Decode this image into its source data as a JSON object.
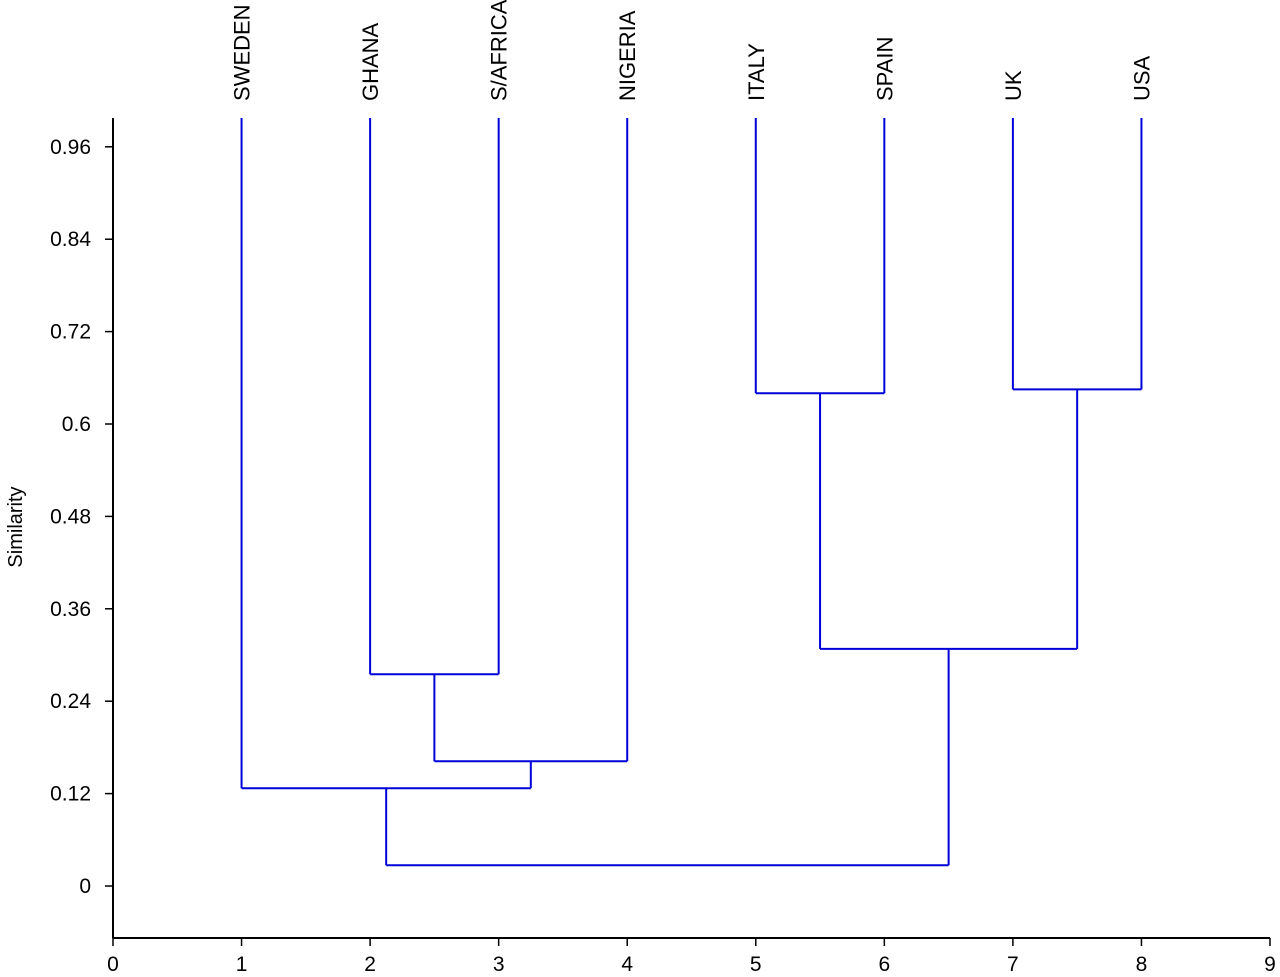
{
  "chart_data": {
    "type": "dendrogram",
    "title": "",
    "xlabel": "",
    "ylabel": "Similarity",
    "xlim": [
      0,
      9
    ],
    "ylim": [
      -0.07,
      1.0
    ],
    "x_ticks": [
      "0",
      "1",
      "2",
      "3",
      "4",
      "5",
      "6",
      "7",
      "8",
      "9"
    ],
    "y_ticks": [
      "0",
      "0.12",
      "0.24",
      "0.36",
      "0.48",
      "0.6",
      "0.72",
      "0.84",
      "0.96"
    ],
    "line_color": "#0000d8",
    "leaves": [
      {
        "name": "SWEDEN",
        "x": 1
      },
      {
        "name": "GHANA",
        "x": 2
      },
      {
        "name": "S/AFRICA",
        "x": 3
      },
      {
        "name": "NIGERIA",
        "x": 4
      },
      {
        "name": "ITALY",
        "x": 5
      },
      {
        "name": "SPAIN",
        "x": 6
      },
      {
        "name": "UK",
        "x": 7
      },
      {
        "name": "USA",
        "x": 8
      }
    ],
    "merges": [
      {
        "left": "GHANA",
        "right": "S/AFRICA",
        "similarity": 0.275
      },
      {
        "left": "GHANA + S/AFRICA",
        "right": "NIGERIA",
        "similarity": 0.162
      },
      {
        "left": "SWEDEN",
        "right": "GHANA + S/AFRICA + NIGERIA",
        "similarity": 0.127
      },
      {
        "left": "ITALY",
        "right": "SPAIN",
        "similarity": 0.64
      },
      {
        "left": "UK",
        "right": "USA",
        "similarity": 0.645
      },
      {
        "left": "ITALY + SPAIN",
        "right": "UK + USA",
        "similarity": 0.308
      },
      {
        "left": "SWEDEN + GHANA + S/AFRICA + NIGERIA",
        "right": "ITALY + SPAIN + UK + USA",
        "similarity": 0.027
      }
    ]
  }
}
